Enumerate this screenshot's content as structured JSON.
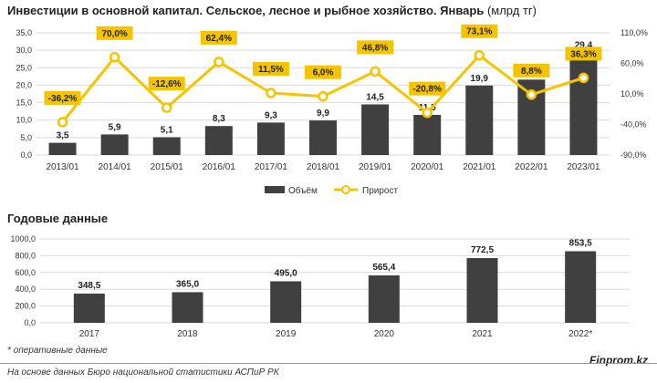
{
  "header": {
    "title": "Инвестиции в основной капитал. Сельское, лесное и рыбное хозяйство. Январь",
    "unit": "(млрд тг)"
  },
  "annual_section_title": "Годовые данные",
  "footnote": "* оперативные данные",
  "source": "На основе данных Бюро национальной статистики АСПиР РК",
  "brand": "Finprom.kz",
  "colors": {
    "bar": "#404040",
    "line": "#f5c400",
    "label_bg": "#f5c400",
    "grid": "#d9d9d9"
  },
  "chart_data": [
    {
      "type": "bar",
      "categories": [
        "2013/01",
        "2014/01",
        "2015/01",
        "2016/01",
        "2017/01",
        "2018/01",
        "2019/01",
        "2020/01",
        "2021/01",
        "2022/01",
        "2023/01"
      ],
      "series": [
        {
          "name": "Объём",
          "type": "bar",
          "axis": "left",
          "values": [
            3.5,
            5.9,
            5.1,
            8.3,
            9.3,
            9.9,
            14.5,
            11.5,
            19.9,
            21.6,
            29.4
          ],
          "labels": [
            "3,5",
            "5,9",
            "5,1",
            "8,3",
            "9,3",
            "9,9",
            "14,5",
            "11,5",
            "19,9",
            "21,6",
            "29,4"
          ]
        },
        {
          "name": "Прирост",
          "type": "line",
          "axis": "right",
          "values": [
            -36.2,
            70.0,
            -12.6,
            62.4,
            11.5,
            6.0,
            46.8,
            -20.8,
            73.1,
            8.8,
            36.3
          ],
          "labels": [
            "-36,2%",
            "70,0%",
            "-12,6%",
            "62,4%",
            "11,5%",
            "6,0%",
            "46,8%",
            "-20,8%",
            "73,1%",
            "8,8%",
            "36,3%"
          ]
        }
      ],
      "ylim": [
        0,
        35
      ],
      "yticks": [
        "0,0",
        "5,0",
        "10,0",
        "15,0",
        "20,0",
        "25,0",
        "30,0",
        "35,0"
      ],
      "y2lim": [
        -90,
        110
      ],
      "y2ticks": [
        "-90,0%",
        "-40,0%",
        "10,0%",
        "60,0%",
        "110,0%"
      ],
      "legend": {
        "position": "bottom",
        "items": [
          "Объём",
          "Прирост"
        ]
      },
      "grid": true
    },
    {
      "type": "bar",
      "categories": [
        "2017",
        "2018",
        "2019",
        "2020",
        "2021",
        "2022*"
      ],
      "values": [
        348.5,
        365.0,
        495.0,
        565.4,
        772.5,
        853.5
      ],
      "labels": [
        "348,5",
        "365,0",
        "495,0",
        "565,4",
        "772,5",
        "853,5"
      ],
      "ylim": [
        0,
        1000
      ],
      "yticks": [
        "0,0",
        "200,0",
        "400,0",
        "600,0",
        "800,0",
        "1000,0"
      ],
      "grid": true
    }
  ]
}
